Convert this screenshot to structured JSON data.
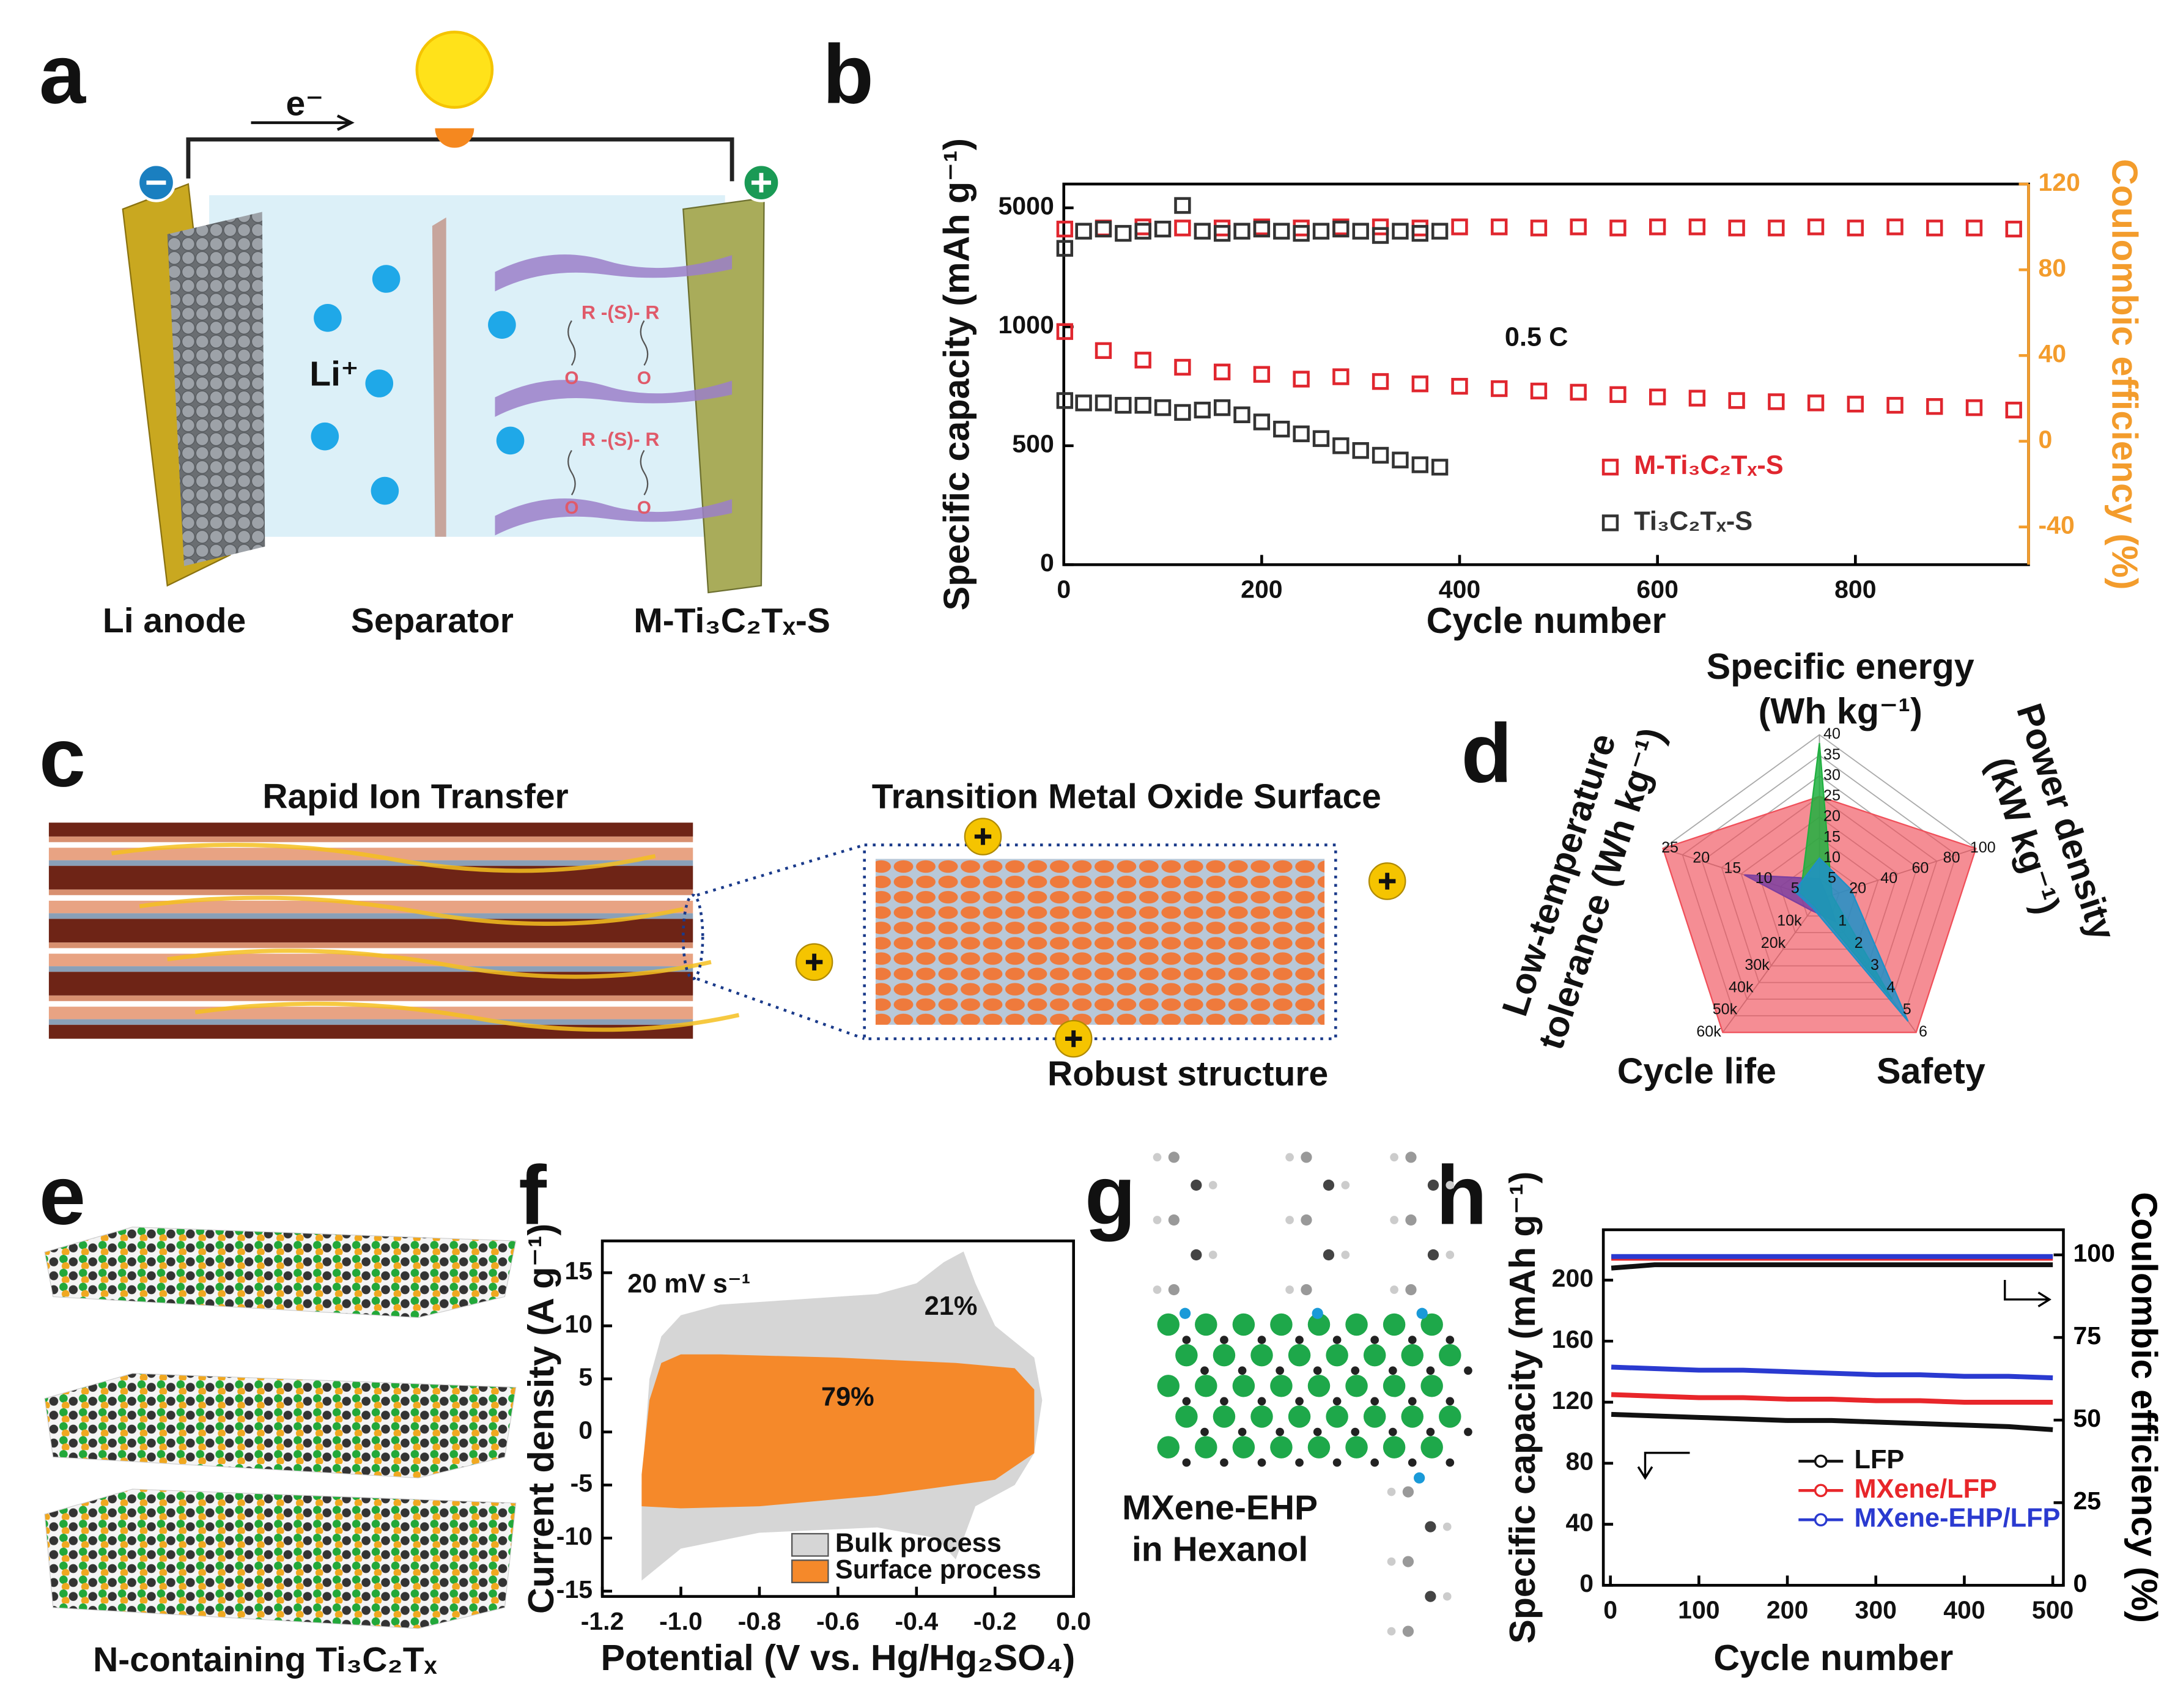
{
  "panel_labels": [
    "a",
    "b",
    "c",
    "d",
    "e",
    "f",
    "g",
    "h"
  ],
  "panel_a": {
    "electron": "e⁻",
    "ion": "Li⁺",
    "linkers": [
      "R -(S)- R",
      "R -(S)- R"
    ],
    "oxygens": [
      "O",
      "O",
      "O",
      "O"
    ],
    "labels": [
      "Li anode",
      "Separator",
      "M-Ti₃C₂Tₓ-S"
    ]
  },
  "panel_c": {
    "left_title": "Rapid Ion Transfer",
    "right_title": "Transition Metal Oxide Surface",
    "caption": "Robust structure"
  },
  "panel_e": {
    "caption": "N-containing Ti₃C₂Tₓ"
  },
  "panel_g": {
    "caption": [
      "MXene-EHP",
      "in Hexanol"
    ]
  },
  "chart_data": [
    {
      "type": "scatter",
      "xlabel": "Cycle number",
      "ylabel": "Specific capacity (mAh g⁻¹)",
      "y2label": "Coulombic efficiency (%)",
      "annotation": "0.5 C",
      "xlim": [
        0,
        975
      ],
      "xticks": [
        0,
        200,
        400,
        600,
        800
      ],
      "ylim": [
        0,
        5100
      ],
      "ybreak": [
        1100,
        4600
      ],
      "yticks": [
        0,
        500,
        1000,
        5000
      ],
      "y2lim": [
        -57.6,
        120
      ],
      "y2ticks": [
        -40,
        0,
        40,
        80,
        120
      ],
      "y2color": "#f39c2c",
      "series": [
        {
          "name": "M-Ti₃C₂Tₓ-S",
          "color": "#e0262e",
          "x": [
            1,
            40,
            80,
            120,
            160,
            200,
            240,
            280,
            320,
            360,
            400,
            440,
            480,
            520,
            560,
            600,
            640,
            680,
            720,
            760,
            800,
            840,
            880,
            920,
            960
          ],
          "values": [
            980,
            900,
            860,
            830,
            810,
            800,
            780,
            790,
            770,
            760,
            750,
            740,
            730,
            725,
            715,
            705,
            700,
            690,
            685,
            680,
            675,
            670,
            665,
            660,
            650
          ]
        },
        {
          "name": "Ti₃C₂Tₓ-S",
          "color": "#333333",
          "x": [
            1,
            20,
            40,
            60,
            80,
            100,
            120,
            140,
            160,
            180,
            200,
            220,
            240,
            260,
            280,
            300,
            320,
            340,
            360,
            380
          ],
          "values": [
            690,
            680,
            680,
            670,
            670,
            660,
            640,
            650,
            660,
            630,
            600,
            570,
            550,
            530,
            500,
            480,
            460,
            440,
            420,
            410
          ]
        },
        {
          "color": "#e0262e",
          "axis": "y2",
          "x": [
            1,
            40,
            80,
            120,
            160,
            200,
            240,
            280,
            320,
            360,
            400,
            440,
            480,
            520,
            560,
            600,
            640,
            680,
            720,
            760,
            800,
            840,
            880,
            920,
            960
          ],
          "values": [
            99,
            99.5,
            100,
            99.5,
            99.5,
            100,
            99.5,
            100,
            100,
            99.5,
            100,
            100,
            99.5,
            100,
            99.5,
            100,
            100,
            99.5,
            99.5,
            100,
            99.5,
            100,
            99.5,
            99.5,
            99
          ]
        },
        {
          "color": "#333333",
          "axis": "y2",
          "x": [
            1,
            20,
            40,
            60,
            80,
            100,
            120,
            140,
            160,
            180,
            200,
            220,
            240,
            260,
            280,
            300,
            320,
            340,
            360,
            380
          ],
          "values": [
            90,
            98,
            99,
            97,
            98,
            99,
            110,
            98,
            97,
            98,
            99,
            98,
            97,
            98,
            99,
            98,
            96,
            98,
            97,
            98
          ]
        }
      ]
    },
    {
      "type": "radar",
      "axes": [
        {
          "name": "Specific energy",
          "unit": "(Wh kg⁻¹)",
          "lim": [
            0,
            40
          ],
          "ticks": [
            5,
            10,
            15,
            20,
            25,
            30,
            35,
            40
          ]
        },
        {
          "name": "Power density",
          "unit": "(kW kg⁻¹)",
          "lim": [
            0,
            100
          ],
          "ticks": [
            20,
            40,
            60,
            80,
            100
          ]
        },
        {
          "name": "Safety",
          "lim": [
            0,
            6
          ],
          "ticks": [
            1,
            2,
            3,
            4,
            5,
            6
          ]
        },
        {
          "name": "Cycle life",
          "lim": [
            0,
            60000
          ],
          "ticks": [
            {
              "value": 10000,
              "label": "10k"
            },
            {
              "value": 20000,
              "label": "20k"
            },
            {
              "value": 30000,
              "label": "30k"
            },
            {
              "value": 40000,
              "label": "40k"
            },
            {
              "value": 50000,
              "label": "50k"
            },
            {
              "value": 60000,
              "label": "60k"
            }
          ]
        },
        {
          "name": "Low-temperature",
          "unit": "tolerance (Wh kg⁻¹)",
          "lim": [
            0,
            25
          ],
          "ticks": [
            5,
            10,
            15,
            20,
            25
          ]
        }
      ],
      "series": [
        {
          "color": "#f0505a",
          "values": [
            25,
            100,
            6,
            60000,
            25
          ]
        },
        {
          "color": "#7b3fa0",
          "values": [
            5,
            5,
            1,
            5000,
            12
          ]
        },
        {
          "color": "#20b040",
          "values": [
            38,
            8,
            4.5,
            3000,
            3
          ]
        },
        {
          "color": "#1e90c8",
          "values": [
            10,
            20,
            5.5,
            4000,
            4
          ]
        }
      ]
    },
    {
      "type": "area",
      "xlabel": "Potential (V vs. Hg/Hg₂SO₄)",
      "ylabel": "Current density (A g⁻¹)",
      "annotations": [
        "20 mV s⁻¹",
        "21%",
        "79%"
      ],
      "xlim": [
        -1.2,
        0
      ],
      "xticks": [
        -1.2,
        {
          "value": -1,
          "label": "-1.0"
        },
        -0.8,
        -0.6,
        -0.4,
        -0.2,
        {
          "value": 0,
          "label": "0.0"
        }
      ],
      "ylim": [
        -15.5,
        18
      ],
      "yticks": [
        -15,
        -10,
        -5,
        0,
        5,
        10,
        15
      ],
      "series": [
        {
          "name": "Bulk process",
          "color": "#d6d6d6",
          "x": [
            -1.1,
            -1.1,
            -1.08,
            -1.05,
            -1.0,
            -0.9,
            -0.7,
            -0.5,
            -0.4,
            -0.33,
            -0.28,
            -0.25,
            -0.2,
            -0.1,
            -0.08,
            -0.1,
            -0.15,
            -0.25,
            -0.3,
            -0.35,
            -0.5,
            -0.8,
            -1.0,
            -1.1
          ],
          "values": [
            -14,
            -5,
            5,
            9,
            11,
            12,
            12.5,
            13,
            14,
            16,
            17,
            14,
            10,
            7,
            3,
            -2,
            -5,
            -7,
            -12,
            -10,
            -9,
            -9.5,
            -11,
            -14
          ]
        },
        {
          "name": "Surface process",
          "color": "#f5892a",
          "x": [
            -1.1,
            -1.1,
            -1.08,
            -1.05,
            -1.0,
            -0.9,
            -0.6,
            -0.3,
            -0.15,
            -0.1,
            -0.1,
            -0.2,
            -0.3,
            -0.5,
            -0.8,
            -1.0,
            -1.1
          ],
          "values": [
            -7,
            -4,
            3,
            6.5,
            7.3,
            7.3,
            7,
            6.5,
            6,
            4,
            -2,
            -4.5,
            -5,
            -6,
            -7,
            -7.2,
            -7
          ]
        }
      ]
    },
    {
      "type": "line",
      "xlabel": "Cycle number",
      "ylabel": "Specific capacity (mAh g⁻¹)",
      "y2label": "Coulombic efficiency (%)",
      "xlim": [
        -8,
        512
      ],
      "xticks": [
        0,
        100,
        200,
        300,
        400,
        500
      ],
      "ylim": [
        0,
        233
      ],
      "yticks": [
        0,
        40,
        80,
        120,
        160,
        200
      ],
      "y2lim": [
        0,
        107.6
      ],
      "y2ticks": [
        0,
        25,
        50,
        75,
        100
      ],
      "series": [
        {
          "name": "LFP",
          "color": "#111111",
          "x": [
            1,
            50,
            100,
            150,
            200,
            250,
            300,
            350,
            400,
            450,
            500
          ],
          "values": [
            112,
            111,
            110,
            109,
            108,
            108,
            107,
            106,
            105,
            104,
            102
          ]
        },
        {
          "name": "MXene/LFP",
          "color": "#e8262a",
          "x": [
            1,
            50,
            100,
            150,
            200,
            250,
            300,
            350,
            400,
            450,
            500
          ],
          "values": [
            125,
            124,
            123,
            123,
            122,
            122,
            121,
            121,
            120,
            120,
            120
          ]
        },
        {
          "name": "MXene-EHP/LFP",
          "color": "#2a3ad0",
          "x": [
            1,
            50,
            100,
            150,
            200,
            250,
            300,
            350,
            400,
            450,
            500
          ],
          "values": [
            143,
            142,
            141,
            141,
            140,
            139,
            138,
            138,
            137,
            137,
            136
          ]
        },
        {
          "color": "#111111",
          "axis": "y2",
          "x": [
            1,
            50,
            100,
            150,
            200,
            250,
            300,
            350,
            400,
            450,
            500
          ],
          "values": [
            96,
            97,
            97,
            97,
            97,
            97,
            97,
            97,
            97,
            97,
            97
          ]
        },
        {
          "color": "#e8262a",
          "axis": "y2",
          "x": [
            1,
            50,
            100,
            150,
            200,
            250,
            300,
            350,
            400,
            450,
            500
          ],
          "values": [
            99,
            99,
            99,
            99,
            99,
            99,
            99,
            99,
            99,
            99,
            99
          ]
        },
        {
          "color": "#2a3ad0",
          "axis": "y2",
          "x": [
            1,
            50,
            100,
            150,
            200,
            250,
            300,
            350,
            400,
            450,
            500
          ],
          "values": [
            99.5,
            99.5,
            99.5,
            99.5,
            99.5,
            99.5,
            99.5,
            99.5,
            99.5,
            99.5,
            99.5
          ]
        }
      ]
    }
  ]
}
